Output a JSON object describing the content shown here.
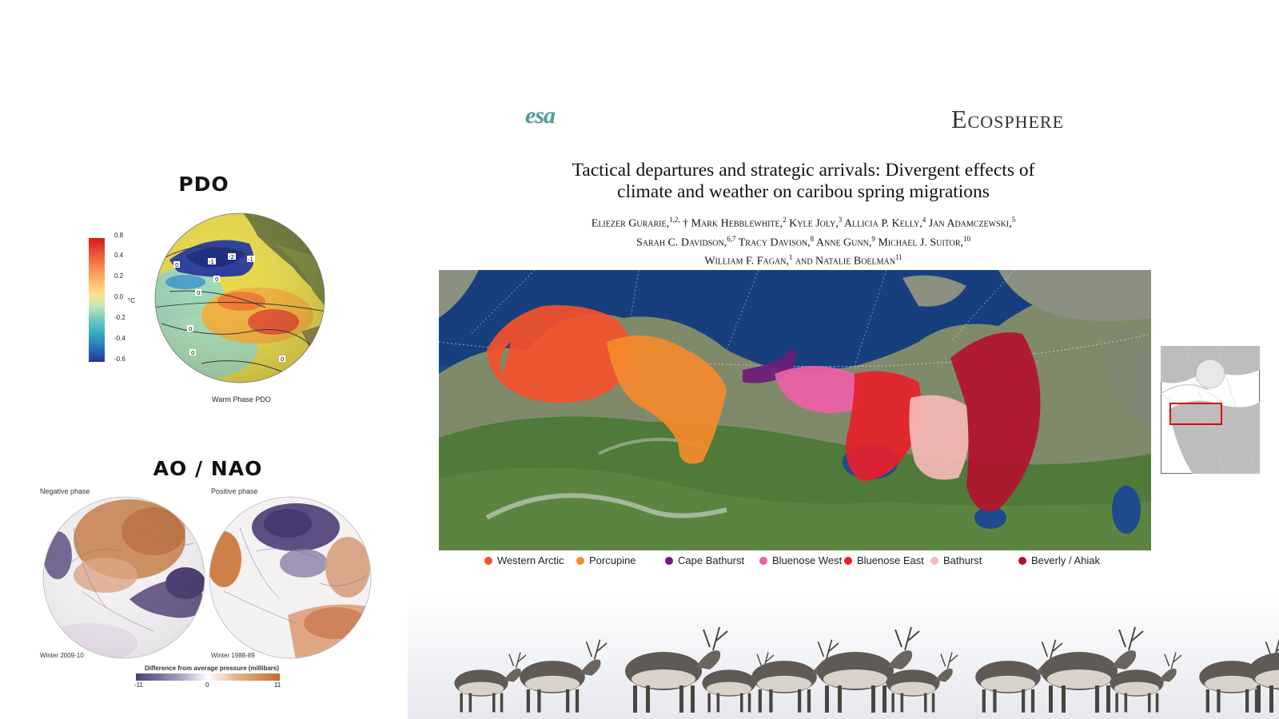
{
  "pdo": {
    "title": "PDO",
    "caption": "Warm Phase PDO",
    "unit": "°C",
    "colorbar_ticks": [
      "0.8",
      "0.4",
      "0.2",
      "0.0",
      "-0.2",
      "-0.4",
      "-0.6"
    ],
    "contour_labels": [
      "0",
      "-1",
      "-2",
      "-1",
      "0",
      "0",
      "0",
      "0",
      "0"
    ]
  },
  "ao_nao": {
    "title": "AO / NAO",
    "negative_label": "Negative phase",
    "positive_label": "Positive phase",
    "winter_negative": "Winter 2009-10",
    "winter_positive": "Winter 1988-89",
    "pressure_title": "Difference from average pressure (millibars)",
    "pressure_ticks": [
      "-11",
      "0",
      "11"
    ]
  },
  "paper": {
    "logo": "esa",
    "journal": "Ecosphere",
    "title_line1": "Tactical departures and strategic arrivals: Divergent effects of",
    "title_line2": "climate and weather on caribou spring migrations",
    "authors": [
      {
        "name": "Eliezer Gurarie,",
        "sup": "1,2,"
      },
      {
        "name": "† Mark Hebblewhite,",
        "sup": "2"
      },
      {
        "name": "Kyle Joly,",
        "sup": "3"
      },
      {
        "name": "Allicia P. Kelly,",
        "sup": "4"
      },
      {
        "name": "Jan Adamczewski,",
        "sup": "5"
      },
      {
        "name": "Sarah C. Davidson,",
        "sup": "6,7"
      },
      {
        "name": "Tracy Davison,",
        "sup": "8"
      },
      {
        "name": "Anne Gunn,",
        "sup": "9"
      },
      {
        "name": "Michael J. Suitor,",
        "sup": "10"
      },
      {
        "name": "William F. Fagan,",
        "sup": "1"
      },
      {
        "name": "and Natalie Boelman",
        "sup": "11"
      }
    ]
  },
  "map": {
    "legend": [
      {
        "label": "Western Arctic",
        "color": "#f4502a"
      },
      {
        "label": "Porcupine",
        "color": "#f58a2e"
      },
      {
        "label": "Cape Bathurst",
        "color": "#6d1a7a"
      },
      {
        "label": "Bluenose West",
        "color": "#ee5fa7"
      },
      {
        "label": "Bluenose East",
        "color": "#e8202a"
      },
      {
        "label": "Bathurst",
        "color": "#f6b9b9"
      },
      {
        "label": "Beverly / Ahiak",
        "color": "#b3112e"
      }
    ]
  }
}
